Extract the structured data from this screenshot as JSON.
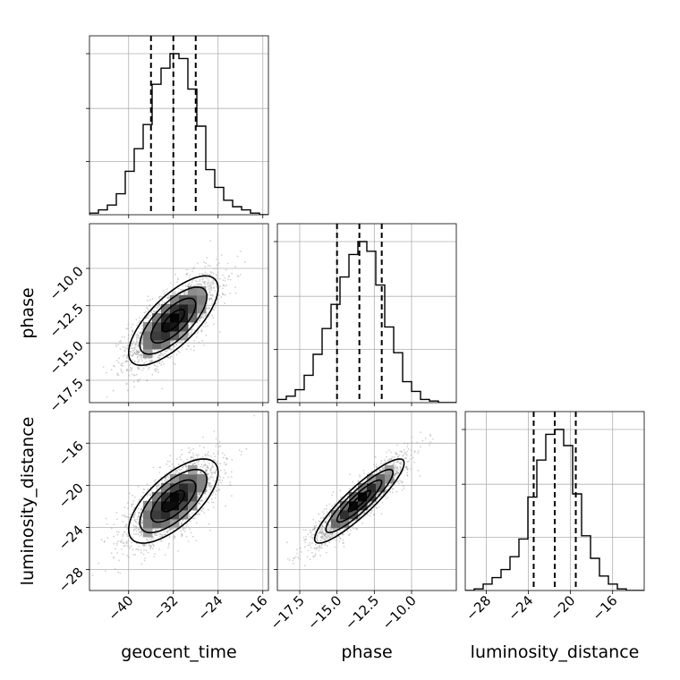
{
  "chart_data": {
    "type": "corner",
    "grid": true,
    "parameters": [
      {
        "key": "geocent_time",
        "label": "geocent_time",
        "range": [
          -47,
          -15
        ],
        "ticks": [
          -40,
          -32,
          -24,
          -16
        ],
        "tick_labels": [
          "−40",
          "−32",
          "−24",
          "−16"
        ],
        "mean": -32.0,
        "std": 4.0,
        "quantiles": [
          -36.0,
          -32.0,
          -28.0
        ]
      },
      {
        "key": "phase",
        "label": "phase",
        "range": [
          -19.0,
          -7.0
        ],
        "ticks": [
          -17.5,
          -15.0,
          -12.5,
          -10.0
        ],
        "tick_labels": [
          "−17.5",
          "−15.0",
          "−12.5",
          "−10.0"
        ],
        "mean": -13.5,
        "std": 1.5,
        "quantiles": [
          -15.0,
          -13.5,
          -12.0
        ]
      },
      {
        "key": "luminosity_distance",
        "label": "luminosity_distance",
        "range": [
          -30.0,
          -13.0
        ],
        "ticks": [
          -28,
          -24,
          -20,
          -16
        ],
        "tick_labels": [
          "−28",
          "−24",
          "−20",
          "−16"
        ],
        "mean": -21.5,
        "std": 2.0,
        "quantiles": [
          -23.5,
          -21.5,
          -19.5
        ]
      }
    ],
    "histograms": [
      {
        "param": "geocent_time",
        "bin_edges": [
          -47,
          -45.4,
          -43.8,
          -42.2,
          -40.6,
          -39,
          -37.4,
          -35.8,
          -34.2,
          -32.6,
          -31,
          -29.4,
          -27.8,
          -26.2,
          -24.6,
          -23,
          -21.4,
          -19.8,
          -18.2,
          -16.6,
          -15
        ],
        "counts": [
          0.01,
          0.03,
          0.06,
          0.13,
          0.27,
          0.41,
          0.56,
          0.81,
          0.91,
          1.0,
          0.97,
          0.78,
          0.55,
          0.28,
          0.17,
          0.09,
          0.05,
          0.03,
          0.01,
          0.0
        ]
      },
      {
        "param": "phase",
        "bin_edges": [
          -19,
          -18.4,
          -17.8,
          -17.2,
          -16.6,
          -16,
          -15.4,
          -14.8,
          -14.2,
          -13.6,
          -13,
          -12.4,
          -11.8,
          -11.2,
          -10.6,
          -10,
          -9.4,
          -8.8,
          -8.2,
          -7.6,
          -7
        ],
        "counts": [
          0.02,
          0.04,
          0.08,
          0.17,
          0.3,
          0.46,
          0.61,
          0.78,
          0.92,
          1.0,
          0.94,
          0.73,
          0.47,
          0.31,
          0.13,
          0.07,
          0.02,
          0.01,
          0.0,
          0.0
        ]
      },
      {
        "param": "luminosity_distance",
        "bin_edges": [
          -30,
          -29.15,
          -28.3,
          -27.45,
          -26.6,
          -25.75,
          -24.9,
          -24.05,
          -23.2,
          -22.35,
          -21.5,
          -20.65,
          -19.8,
          -18.95,
          -18.1,
          -17.25,
          -16.4,
          -15.55,
          -14.7,
          -13.85,
          -13
        ],
        "counts": [
          0.0,
          0.01,
          0.04,
          0.08,
          0.13,
          0.21,
          0.32,
          0.58,
          0.81,
          0.97,
          1.0,
          0.9,
          0.6,
          0.34,
          0.2,
          0.09,
          0.04,
          0.01,
          0.0,
          0.0
        ]
      }
    ],
    "correlations": [
      {
        "x": "geocent_time",
        "y": "phase",
        "rho": 0.72
      },
      {
        "x": "geocent_time",
        "y": "luminosity_distance",
        "rho": 0.68
      },
      {
        "x": "phase",
        "y": "luminosity_distance",
        "rho": 0.9
      }
    ],
    "contour_levels_sigma": [
      0.5,
      1.0,
      1.5,
      2.0
    ]
  }
}
